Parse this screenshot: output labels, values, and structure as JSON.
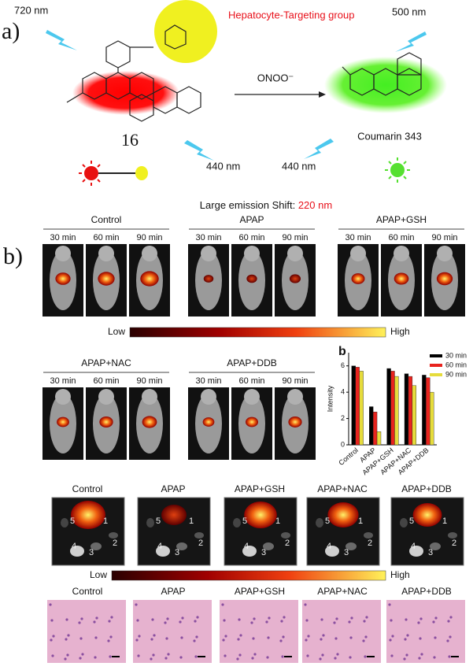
{
  "panel_a": {
    "label": "a)",
    "left_emission": "720 nm",
    "right_emission": "500 nm",
    "targeting_group": "Hepatocyte-Targeting group",
    "reagent": "ONOO⁻",
    "probe": "16",
    "product": "Coumarin 343",
    "left_excitation": "440 nm",
    "right_excitation": "440 nm",
    "shift_label": "Large emission Shift: ",
    "shift_value": "220 nm"
  },
  "panel_b": {
    "label": "b)",
    "groups": [
      "Control",
      "APAP",
      "APAP+GSH",
      "APAP+NAC",
      "APAP+DDB"
    ],
    "times": [
      "30 min",
      "60 min",
      "90 min"
    ],
    "scale_low": "Low",
    "scale_high": "High",
    "organ_numbers": [
      "1",
      "2",
      "3",
      "4",
      "5"
    ]
  },
  "chart_data": {
    "type": "bar",
    "panel_label": "b",
    "y_label": "Intensity",
    "categories": [
      "Control",
      "APAP",
      "APAP+GSH",
      "APAP+NAC",
      "APAP+DDB"
    ],
    "series": [
      {
        "name": "30 min",
        "color": "#000000",
        "values": [
          6.0,
          2.9,
          5.8,
          5.4,
          5.3
        ]
      },
      {
        "name": "60 min",
        "color": "#e8231e",
        "values": [
          5.9,
          2.5,
          5.6,
          5.2,
          5.1
        ]
      },
      {
        "name": "90 min",
        "color": "#e6dc3c",
        "values": [
          5.6,
          1.0,
          5.2,
          4.5,
          4.0
        ]
      }
    ],
    "ylim": [
      0,
      7
    ],
    "yticks": [
      0,
      2,
      4,
      6
    ]
  }
}
